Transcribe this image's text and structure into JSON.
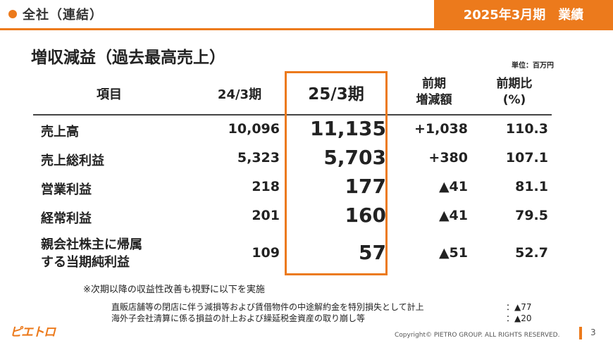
{
  "header": {
    "section_title": "全社（連結）",
    "period_label": "2025年3月期　業績"
  },
  "page_title": "増収減益（過去最高売上）",
  "unit_label": "単位：百万円",
  "table": {
    "columns": [
      "項目",
      "24/3期",
      "25/3期",
      "前期\n増減額",
      "前期比\n(%)"
    ],
    "rows": [
      {
        "item": "売上高",
        "prev": "10,096",
        "curr": "11,135",
        "diff": "+1,038",
        "ratio": "110.3"
      },
      {
        "item": "売上総利益",
        "prev": "5,323",
        "curr": "5,703",
        "diff": "+380",
        "ratio": "107.1"
      },
      {
        "item": "営業利益",
        "prev": "218",
        "curr": "177",
        "diff": "▲41",
        "ratio": "81.1"
      },
      {
        "item": "経常利益",
        "prev": "201",
        "curr": "160",
        "diff": "▲41",
        "ratio": "79.5"
      },
      {
        "item": "親会社株主に帰属\nする当期純利益",
        "prev": "109",
        "curr": "57",
        "diff": "▲51",
        "ratio": "52.7"
      }
    ]
  },
  "notes": {
    "main": "※次期以降の収益性改善も視野に以下を実施",
    "items": [
      {
        "text": "直販店舗等の閉店に伴う減損等および賃借物件の中途解約金を特別損失として計上",
        "value": "：▲77"
      },
      {
        "text": "海外子会社清算に係る損益の計上および繰延税金資産の取り崩し等",
        "value": "：▲20"
      }
    ]
  },
  "footer": {
    "logo": "ピエトロ",
    "copyright": "Copyright© PIETRO GROUP. ALL RIGHTS RESERVED.",
    "page_number": "3"
  },
  "colors": {
    "accent": "#ec7a1c"
  }
}
